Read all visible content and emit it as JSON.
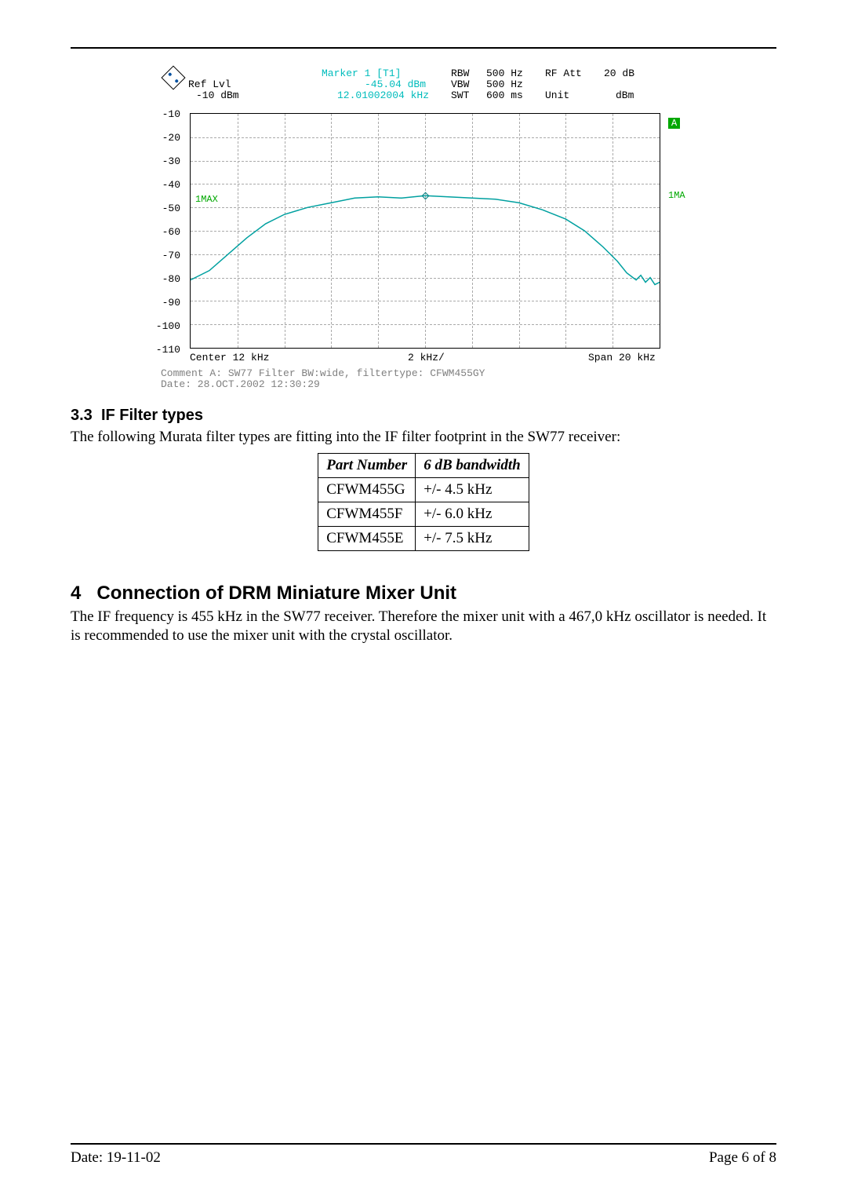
{
  "chart": {
    "type": "line",
    "header": {
      "marker_label": "Marker 1 [T1]",
      "ref_lvl_label": "Ref Lvl",
      "ref_lvl_value": "-10 dBm",
      "marker_value": "-45.04 dBm",
      "marker_freq": "12.01002004 kHz",
      "rbw_label": "RBW",
      "rbw_value": "500 Hz",
      "vbw_label": "VBW",
      "vbw_value": "500 Hz",
      "swt_label": "SWT",
      "swt_value": "600 ms",
      "rf_att_label": "RF Att",
      "rf_att_value": "20 dB",
      "unit_label": "Unit",
      "unit_value": "dBm"
    },
    "y_labels": [
      "-10",
      "-20",
      "-30",
      "-40",
      "-50",
      "-60",
      "-70",
      "-80",
      "-90",
      "-100",
      "-110"
    ],
    "ylim": [
      -110,
      -10
    ],
    "xaxis": {
      "center": "Center 12 kHz",
      "div": "2 kHz/",
      "span": "Span 20 kHz"
    },
    "trace": {
      "color": "#00a0a0",
      "points": [
        [
          0.0,
          -81
        ],
        [
          0.02,
          -79
        ],
        [
          0.04,
          -77
        ],
        [
          0.08,
          -70
        ],
        [
          0.12,
          -63
        ],
        [
          0.16,
          -57
        ],
        [
          0.2,
          -53
        ],
        [
          0.25,
          -50
        ],
        [
          0.3,
          -48
        ],
        [
          0.35,
          -46
        ],
        [
          0.4,
          -45.5
        ],
        [
          0.45,
          -46
        ],
        [
          0.5,
          -45
        ],
        [
          0.55,
          -45.5
        ],
        [
          0.6,
          -46
        ],
        [
          0.65,
          -46.5
        ],
        [
          0.7,
          -48
        ],
        [
          0.75,
          -51
        ],
        [
          0.8,
          -55
        ],
        [
          0.84,
          -60
        ],
        [
          0.88,
          -67
        ],
        [
          0.91,
          -73
        ],
        [
          0.93,
          -78
        ],
        [
          0.95,
          -81
        ],
        [
          0.96,
          -79
        ],
        [
          0.97,
          -82
        ],
        [
          0.98,
          -80
        ],
        [
          0.99,
          -83
        ],
        [
          1.0,
          -82
        ]
      ]
    },
    "marker_1max": {
      "label": "1MAX",
      "color": "#00a800"
    },
    "marker_1ma": {
      "label": "1MA",
      "color": "#00a800"
    },
    "badge_a": "A",
    "marker_diamond_x": 0.5,
    "marker_diamond_y": -45,
    "comment_line": "Comment A: SW77 Filter BW:wide, filtertype: CFWM455GY",
    "date_line": "Date:      28.OCT.2002  12:30:29",
    "grid_color": "#aaaaaa",
    "background_color": "#ffffff"
  },
  "section_3_3": {
    "heading_num": "3.3",
    "heading_text": "IF Filter types",
    "body": "The following Murata filter types are fitting into the IF filter footprint in the SW77 receiver:"
  },
  "filter_table": {
    "columns": [
      "Part Number",
      "6 dB bandwidth"
    ],
    "rows": [
      [
        "CFWM455G",
        "+/- 4.5 kHz"
      ],
      [
        "CFWM455F",
        "+/- 6.0 kHz"
      ],
      [
        "CFWM455E",
        "+/- 7.5 kHz"
      ]
    ]
  },
  "section_4": {
    "heading_num": "4",
    "heading_text": "Connection of DRM Miniature Mixer Unit",
    "body": "The IF frequency is 455 kHz in the SW77 receiver. Therefore the mixer unit with a 467,0 kHz oscillator is needed. It is recommended to use the mixer unit with the crystal oscillator."
  },
  "footer": {
    "date": "Date: 19-11-02",
    "page": "Page 6 of 8"
  }
}
